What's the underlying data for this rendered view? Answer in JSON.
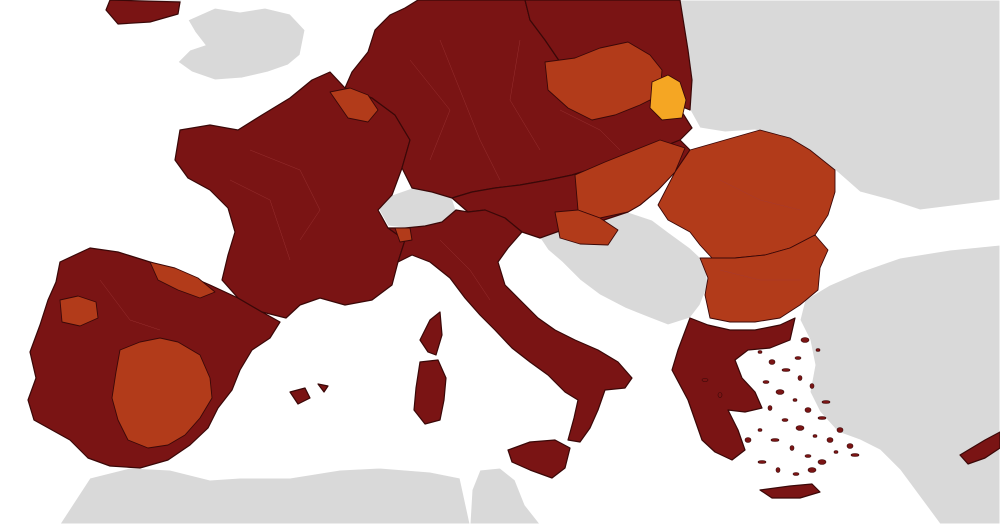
{
  "map": {
    "colors": {
      "sea": "#ffffff",
      "non_eu_land": "#d9d9d9",
      "dark_red": "#7a1414",
      "red": "#b23b1a",
      "orange": "#f5a623",
      "border": "#3a0808",
      "region_border": "#a33a3a",
      "grey_border": "#ffffff"
    },
    "legend_categories": [
      "dark_red",
      "red",
      "orange",
      "grey"
    ]
  }
}
